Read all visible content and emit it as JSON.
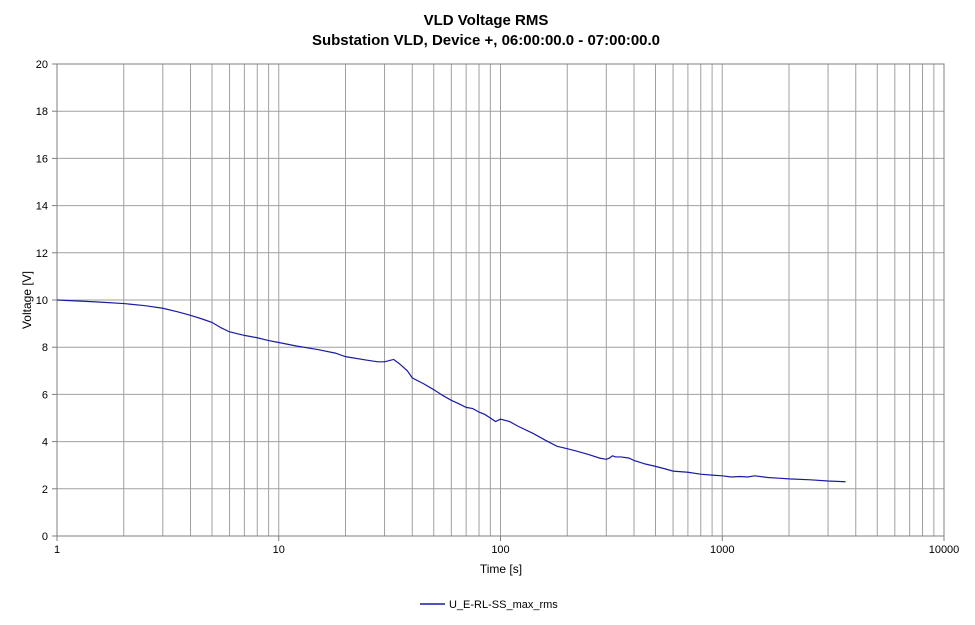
{
  "chart_data": {
    "type": "line",
    "title": "VLD Voltage RMS",
    "subtitle": "Substation VLD, Device +, 06:00:00.0 - 07:00:00.0",
    "xlabel": "Time [s]",
    "ylabel": "Voltage [V]",
    "x_scale": "log",
    "xlim": [
      1,
      10000
    ],
    "ylim": [
      0,
      20
    ],
    "x_ticks": [
      "1",
      "10",
      "100",
      "1000",
      "10000"
    ],
    "y_ticks": [
      "0",
      "2",
      "4",
      "6",
      "8",
      "10",
      "12",
      "14",
      "16",
      "18",
      "20"
    ],
    "grid": true,
    "legend_position": "bottom-center",
    "series": [
      {
        "name": "U_E-RL-SS_max_rms",
        "color": "#1a1aa6",
        "x": [
          1,
          1.5,
          2,
          2.5,
          3,
          3.5,
          4,
          4.5,
          5,
          5.5,
          6,
          7,
          8,
          9,
          10,
          12,
          15,
          18,
          20,
          25,
          28,
          30,
          32,
          33,
          35,
          38,
          40,
          45,
          50,
          55,
          60,
          65,
          70,
          75,
          80,
          85,
          90,
          95,
          100,
          110,
          120,
          140,
          160,
          180,
          200,
          220,
          250,
          280,
          300,
          310,
          320,
          330,
          350,
          380,
          400,
          450,
          500,
          550,
          600,
          700,
          800,
          900,
          1000,
          1100,
          1200,
          1300,
          1400,
          1600,
          1800,
          2000,
          2500,
          3000,
          3600
        ],
        "y": [
          10.0,
          9.92,
          9.85,
          9.76,
          9.65,
          9.5,
          9.35,
          9.2,
          9.05,
          8.82,
          8.65,
          8.5,
          8.4,
          8.28,
          8.2,
          8.05,
          7.9,
          7.75,
          7.6,
          7.45,
          7.38,
          7.38,
          7.45,
          7.48,
          7.3,
          7.0,
          6.7,
          6.45,
          6.2,
          5.95,
          5.75,
          5.6,
          5.45,
          5.4,
          5.25,
          5.15,
          5.0,
          4.85,
          4.95,
          4.85,
          4.65,
          4.35,
          4.05,
          3.8,
          3.7,
          3.6,
          3.45,
          3.3,
          3.25,
          3.3,
          3.4,
          3.35,
          3.35,
          3.3,
          3.2,
          3.05,
          2.95,
          2.85,
          2.75,
          2.7,
          2.62,
          2.58,
          2.55,
          2.5,
          2.52,
          2.5,
          2.55,
          2.48,
          2.45,
          2.42,
          2.38,
          2.33,
          2.3
        ]
      }
    ]
  }
}
